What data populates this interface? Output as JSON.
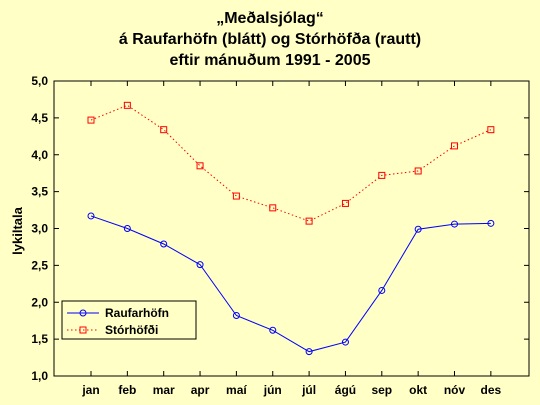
{
  "chart_data": {
    "type": "line",
    "title_lines": [
      "„Meðalsjólag“",
      "á Raufarhöfn (blátt) og Stórhöfða (rautt)",
      "eftir mánuðum 1991 - 2005"
    ],
    "xlabel": "",
    "ylabel": "lykiltala",
    "categories": [
      "jan",
      "feb",
      "mar",
      "apr",
      "maí",
      "jún",
      "júl",
      "ágú",
      "sep",
      "okt",
      "nóv",
      "des"
    ],
    "ylim": [
      1.0,
      5.0
    ],
    "yticks": [
      "1,0",
      "1,5",
      "2,0",
      "2,5",
      "3,0",
      "3,5",
      "4,0",
      "4,5",
      "5,0"
    ],
    "ytick_values": [
      1.0,
      1.5,
      2.0,
      2.5,
      3.0,
      3.5,
      4.0,
      4.5,
      5.0
    ],
    "grid": false,
    "legend_position": "bottom-left",
    "series": [
      {
        "name": "Raufarhöfn",
        "color": "#0000ff",
        "marker": "circle",
        "line_style": "solid",
        "values": [
          3.17,
          3.0,
          2.79,
          2.51,
          1.82,
          1.62,
          1.33,
          1.46,
          2.16,
          2.99,
          3.06,
          3.07
        ]
      },
      {
        "name": "Stórhöfði",
        "color": "#ff0000",
        "marker": "square",
        "line_style": "dotted",
        "values": [
          4.47,
          4.67,
          4.34,
          3.85,
          3.44,
          3.28,
          3.1,
          3.34,
          3.72,
          3.78,
          4.12,
          4.34
        ]
      }
    ]
  }
}
